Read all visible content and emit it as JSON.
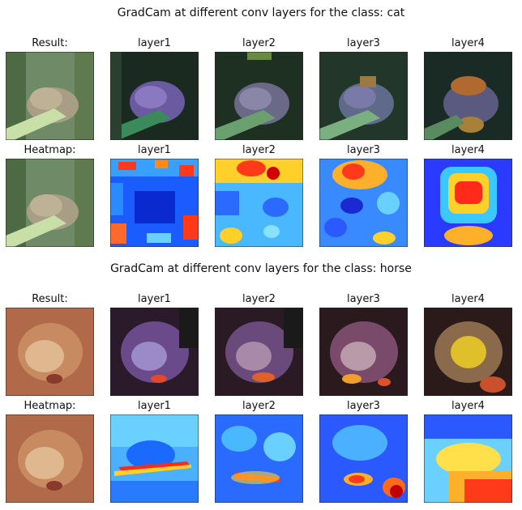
{
  "figures": [
    {
      "title": "GradCam at different conv layers for the class: cat",
      "rows": [
        {
          "type": "result",
          "labels": [
            "Result:",
            "layer1",
            "layer2",
            "layer3",
            "layer4"
          ]
        },
        {
          "type": "heatmap",
          "labels": [
            "Heatmap:",
            "layer1",
            "layer2",
            "layer3",
            "layer4"
          ]
        }
      ]
    },
    {
      "title": "GradCam at different conv layers for the class: horse",
      "rows": [
        {
          "type": "result",
          "labels": [
            "Result:",
            "layer1",
            "layer2",
            "layer3",
            "layer4"
          ]
        },
        {
          "type": "heatmap",
          "labels": [
            "Heatmap:",
            "layer1",
            "layer2",
            "layer3",
            "layer4"
          ]
        }
      ]
    }
  ]
}
